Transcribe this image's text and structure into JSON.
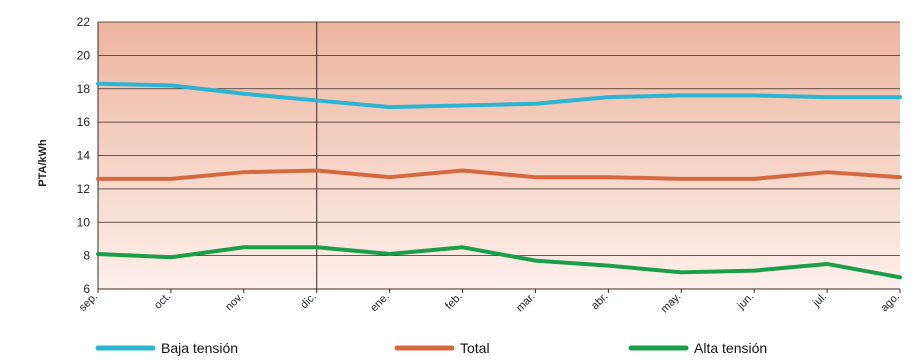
{
  "chart_data": {
    "type": "line",
    "ylabel": "PTA/kWh",
    "xlabel": "",
    "title": "",
    "categories": [
      "sep.",
      "oct.",
      "nov.",
      "dic.",
      "ene.",
      "feb.",
      "mar.",
      "abr.",
      "may.",
      "jun.",
      "jul.",
      "ago."
    ],
    "ylim": [
      6,
      22
    ],
    "yticks": [
      6,
      8,
      10,
      12,
      14,
      16,
      18,
      20,
      22
    ],
    "grid": true,
    "background": "gradient from light pink (bottom) to salmon (top)",
    "divider_after_category": "dic.",
    "legend": "bottom",
    "series": [
      {
        "name": "Baja tensión",
        "color": "#2bb5d1",
        "values": [
          18.3,
          18.2,
          17.7,
          17.3,
          16.9,
          17.0,
          17.1,
          17.5,
          17.6,
          17.6,
          17.5,
          17.5
        ]
      },
      {
        "name": "Total",
        "color": "#d4693f",
        "values": [
          12.6,
          12.6,
          13.0,
          13.1,
          12.7,
          13.1,
          12.7,
          12.7,
          12.6,
          12.6,
          13.0,
          12.7
        ]
      },
      {
        "name": "Alta tensión",
        "color": "#1a9e4b",
        "values": [
          8.1,
          7.9,
          8.5,
          8.5,
          8.1,
          8.5,
          7.7,
          7.4,
          7.0,
          7.1,
          7.5,
          6.7
        ]
      }
    ]
  }
}
